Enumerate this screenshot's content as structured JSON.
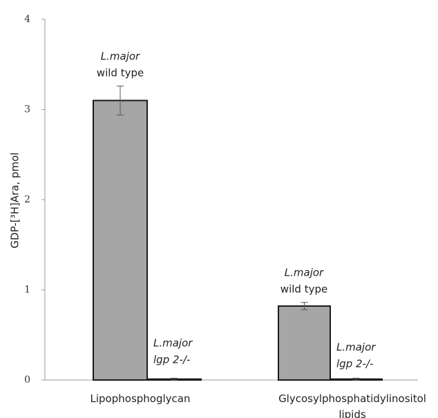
{
  "chart_data": {
    "type": "bar",
    "y_label": "GDP-[³H]Ara, pmol",
    "categories": [
      "Lipophosphoglycan",
      "Glycosylphosphatidylinositol lipids"
    ],
    "series": [
      {
        "color": "#a6a6a6",
        "values": [
          3.1,
          0.82
        ],
        "errors": [
          0.16,
          0.04
        ]
      },
      {
        "color": "#a6a6a6",
        "values": [
          0.01,
          0.01
        ],
        "errors": [
          0.01,
          0.01
        ]
      }
    ],
    "annotations": [
      {
        "lines": [
          "L.major",
          "wild type"
        ]
      },
      {
        "lines": [
          "L.major",
          "lgp 2-/-"
        ]
      },
      {
        "lines": [
          "L.major",
          "wild type"
        ]
      },
      {
        "lines": [
          "L.major",
          "lgp 2-/-"
        ]
      }
    ],
    "ylim": [
      0,
      4
    ],
    "yticks": [
      0,
      1,
      2,
      3,
      4
    ]
  }
}
